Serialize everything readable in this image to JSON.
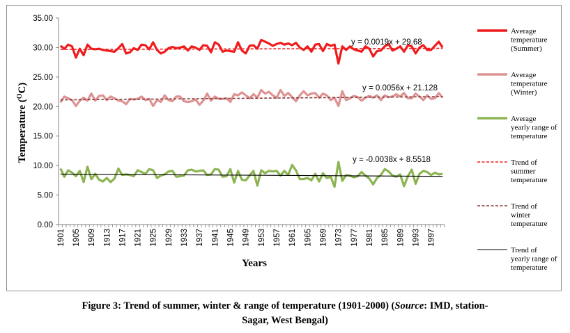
{
  "chart_data": {
    "type": "line",
    "ylabel": "Temperature (",
    "ylabel_sup": "O",
    "ylabel_tail": "C)",
    "xlabel": "Years",
    "ylim": [
      0,
      35
    ],
    "y_ticks": [
      "0.00",
      "5.00",
      "10.00",
      "15.00",
      "20.00",
      "25.00",
      "30.00",
      "35.00"
    ],
    "x_tick_labels": [
      "1901",
      "1905",
      "1909",
      "1913",
      "1917",
      "1921",
      "1925",
      "1929",
      "1933",
      "1937",
      "1941",
      "1945",
      "1949",
      "1953",
      "1957",
      "1961",
      "1965",
      "1969",
      "1973",
      "1977",
      "1981",
      "1985",
      "1989",
      "1993",
      "1997"
    ],
    "x_range": [
      1901,
      2000
    ],
    "series": [
      {
        "name": "Average temperature (Summer)",
        "color": "#ee1c1c",
        "style": "solid-thick",
        "values": [
          30.3,
          29.8,
          30.5,
          30.2,
          28.3,
          29.8,
          28.7,
          30.5,
          29.8,
          29.7,
          29.8,
          29.6,
          29.5,
          29.4,
          29.3,
          29.9,
          30.6,
          29.0,
          29.2,
          29.9,
          29.6,
          30.5,
          30.4,
          29.7,
          30.9,
          29.6,
          29.0,
          29.3,
          29.9,
          30.1,
          29.9,
          30.0,
          30.2,
          29.5,
          30.2,
          30.0,
          29.6,
          30.4,
          30.3,
          29.2,
          30.9,
          30.5,
          29.3,
          29.5,
          29.4,
          29.3,
          30.9,
          29.5,
          29.0,
          30.3,
          30.4,
          29.8,
          31.3,
          31.0,
          30.7,
          30.3,
          30.6,
          30.8,
          30.5,
          30.7,
          30.4,
          30.8,
          30.0,
          29.6,
          30.2,
          29.3,
          30.5,
          30.6,
          29.4,
          30.6,
          30.3,
          30.5,
          27.3,
          30.2,
          29.6,
          30.2,
          29.7,
          29.5,
          29.3,
          30.2,
          29.8,
          28.5,
          29.4,
          29.5,
          30.2,
          30.6,
          29.5,
          29.8,
          30.2,
          29.3,
          30.4,
          30.2,
          29.0,
          30.0,
          30.4,
          29.6,
          29.6,
          30.3,
          31.0,
          30.0
        ]
      },
      {
        "name": "Average temperature (Winter)",
        "color": "#de9393",
        "style": "solid-thick",
        "values": [
          20.7,
          21.7,
          21.4,
          21.1,
          20.1,
          21.0,
          21.5,
          21.0,
          22.2,
          21.0,
          21.8,
          21.9,
          21.1,
          21.7,
          21.4,
          21.0,
          20.9,
          20.4,
          21.3,
          21.2,
          21.3,
          21.7,
          21.1,
          21.3,
          20.1,
          21.1,
          20.8,
          21.9,
          21.1,
          20.9,
          21.7,
          21.7,
          20.9,
          20.8,
          20.9,
          21.2,
          20.3,
          21.0,
          22.2,
          21.0,
          21.7,
          21.3,
          21.3,
          21.4,
          20.8,
          22.1,
          21.9,
          22.4,
          21.9,
          21.4,
          22.1,
          21.5,
          22.8,
          22.2,
          22.5,
          21.9,
          21.5,
          22.8,
          21.8,
          22.3,
          21.6,
          20.9,
          21.9,
          22.6,
          21.9,
          22.2,
          22.3,
          21.5,
          22.2,
          21.9,
          21.1,
          21.5,
          20.1,
          22.6,
          21.1,
          21.4,
          21.8,
          21.6,
          21.0,
          21.5,
          21.8,
          21.5,
          21.9,
          21.1,
          21.9,
          21.6,
          21.7,
          22.1,
          21.7,
          22.3,
          21.4,
          21.4,
          22.2,
          21.7,
          21.1,
          21.9,
          21.3,
          21.4,
          22.3,
          21.5
        ]
      },
      {
        "name": "Average yearly range of temperature",
        "color": "#8cb452",
        "style": "solid-thick",
        "values": [
          9.5,
          8.1,
          9.2,
          8.8,
          8.2,
          9.1,
          7.2,
          9.8,
          7.7,
          8.6,
          7.6,
          7.3,
          7.9,
          7.2,
          7.8,
          9.5,
          8.4,
          8.5,
          8.4,
          8.2,
          9.2,
          8.9,
          8.6,
          9.4,
          9.2,
          7.9,
          8.3,
          8.5,
          9.0,
          9.1,
          8.1,
          8.2,
          8.3,
          9.2,
          9.3,
          9.0,
          9.1,
          9.2,
          8.4,
          8.5,
          9.4,
          9.3,
          8.1,
          8.2,
          9.4,
          7.1,
          9.1,
          7.6,
          7.5,
          8.3,
          9.1,
          6.6,
          9.2,
          8.7,
          9.1,
          9.0,
          9.1,
          8.3,
          9.1,
          8.4,
          10.1,
          9.2,
          7.7,
          7.7,
          7.9,
          7.5,
          8.6,
          7.3,
          8.7,
          7.9,
          8.1,
          6.4,
          10.6,
          7.4,
          8.4,
          8.3,
          8.0,
          8.2,
          8.9,
          8.3,
          7.8,
          6.8,
          7.9,
          8.4,
          9.4,
          9.0,
          8.3,
          8.1,
          8.5,
          6.5,
          8.2,
          9.3,
          6.9,
          8.6,
          9.1,
          8.9,
          8.4,
          8.8,
          8.5,
          8.6
        ]
      },
      {
        "name": "Trend of summer temperature",
        "color": "#ee1c1c",
        "style": "dashed",
        "slope": 0.0019,
        "intercept": 29.68,
        "equation": "y = 0.0019x + 29.68"
      },
      {
        "name": "Trend of winter temperature",
        "color": "#8b3a3a",
        "style": "dashed",
        "slope": 0.0056,
        "intercept": 21.128,
        "equation": "y = 0.0056x + 21.128"
      },
      {
        "name": "Trend of yearly range of temperature",
        "color": "#000000",
        "style": "thin-solid",
        "slope": -0.0038,
        "intercept": 8.5518,
        "equation": "y = -0.0038x + 8.5518"
      }
    ]
  },
  "legend": {
    "entries": [
      {
        "lines": [
          "Average",
          "temperature",
          "(Summer)"
        ]
      },
      {
        "lines": [
          "Average",
          "temperature",
          "(Winter)"
        ]
      },
      {
        "lines": [
          "Average",
          "yearly range of",
          "temperature"
        ]
      },
      {
        "lines": [
          "Trend of",
          "summer",
          "temperature"
        ]
      },
      {
        "lines": [
          "Trend of",
          "winter",
          "temperature"
        ]
      },
      {
        "lines": [
          "Trend of",
          "yearly range of",
          "temperature"
        ]
      }
    ]
  },
  "caption": {
    "part1": "Figure 3: Trend of summer, winter & range of temperature (1901-2000)  (",
    "source_word": "Source",
    "part2": ": IMD, station-",
    "line2": "Sagar, West Bengal)"
  }
}
